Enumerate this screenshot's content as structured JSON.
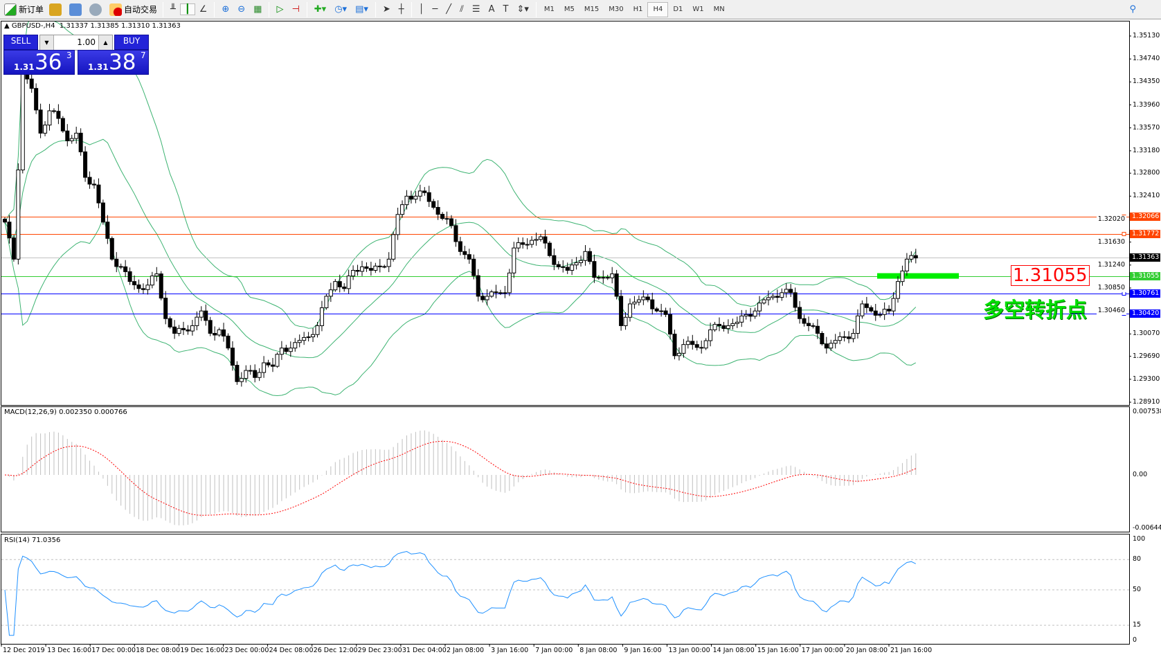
{
  "toolbar": {
    "new_order": "新订单",
    "auto_trading": "自动交易",
    "timeframes": [
      "M1",
      "M5",
      "M15",
      "M30",
      "H1",
      "H4",
      "D1",
      "W1",
      "MN"
    ],
    "active_timeframe": "H4",
    "tools": [
      "bar-chart-icon",
      "candlestick-icon",
      "line-chart-icon",
      "zoom-in-icon",
      "zoom-out-icon",
      "tile-windows-icon",
      "auto-scroll-icon",
      "chart-shift-icon",
      "indicators-icon",
      "periods-icon",
      "templates-icon",
      "cursor-icon",
      "crosshair-icon",
      "vertical-line-icon",
      "horizontal-line-icon",
      "trendline-icon",
      "equidistant-channel-icon",
      "fibonacci-icon",
      "text-icon",
      "text-label-icon",
      "arrows-icon",
      "search-icon"
    ]
  },
  "symbol": {
    "header": "GBPUSD-,H4",
    "ohlc": "1.31337 1.31385 1.31310 1.31363"
  },
  "trade_panel": {
    "sell": "SELL",
    "buy": "BUY",
    "lot": "1.00",
    "sell_prefix": "1.31",
    "sell_big": "36",
    "sell_sup": "3",
    "buy_prefix": "1.31",
    "buy_big": "38",
    "buy_sup": "7"
  },
  "price_axis": {
    "ticks": [
      "1.35130",
      "1.34740",
      "1.34350",
      "1.33960",
      "1.33570",
      "1.33180",
      "1.32800",
      "1.32410",
      "1.32020",
      "1.31630",
      "1.31240",
      "1.30850",
      "1.30460",
      "1.30070",
      "1.29690",
      "1.29300",
      "1.28910"
    ]
  },
  "levels": [
    {
      "price": "1.32066",
      "color": "#ff4500",
      "style": "orange-line"
    },
    {
      "price": "1.31772",
      "color": "#ff4500",
      "style": "orange-line"
    },
    {
      "price": "1.31363",
      "color": "#000000",
      "line": "#c0c0c0",
      "style": "bid-line"
    },
    {
      "price": "1.31055",
      "color": "#32cd32",
      "style": "green-line"
    },
    {
      "price": "1.30761",
      "color": "#0000ff",
      "style": "blue-line"
    },
    {
      "price": "1.30420",
      "color": "#0000ff",
      "style": "blue-line"
    }
  ],
  "annotation": {
    "price_label": "1.31055",
    "text": "多空转折点",
    "color": "#00e000",
    "box_color": "#ff0000"
  },
  "macd": {
    "title": "MACD(12,26,9) 0.002350 0.000766",
    "axis": [
      "0.007538",
      "0.00",
      "-0.006446"
    ]
  },
  "rsi": {
    "title": "RSI(14) 71.0356",
    "axis": [
      "100",
      "80",
      "50",
      "15",
      "0"
    ],
    "color": "#1e90ff"
  },
  "dates": [
    "12 Dec 2019",
    "13 Dec 16:00",
    "17 Dec 00:00",
    "18 Dec 08:00",
    "19 Dec 16:00",
    "23 Dec 00:00",
    "24 Dec 08:00",
    "26 Dec 12:00",
    "29 Dec 23:00",
    "31 Dec 04:00",
    "2 Jan 08:00",
    "3 Jan 16:00",
    "7 Jan 00:00",
    "8 Jan 08:00",
    "9 Jan 16:00",
    "13 Jan 00:00",
    "14 Jan 08:00",
    "15 Jan 16:00",
    "17 Jan 00:00",
    "20 Jan 08:00",
    "21 Jan 16:00"
  ],
  "closes": [
    1.3197,
    1.3134,
    1.3449,
    1.3424,
    1.3348,
    1.3386,
    1.3373,
    1.3335,
    1.3348,
    1.3273,
    1.326,
    1.3197,
    1.3134,
    1.3121,
    1.3096,
    1.3084,
    1.309,
    1.3109,
    1.3033,
    1.3008,
    1.3014,
    1.3021,
    1.3046,
    1.3008,
    1.3014,
    1.2983,
    1.2926,
    1.2945,
    1.2933,
    1.2958,
    1.2952,
    1.2983,
    1.2983,
    1.2996,
    1.3002,
    1.3021,
    1.3071,
    1.3096,
    1.3084,
    1.3115,
    1.3121,
    1.3115,
    1.3121,
    1.3134,
    1.321,
    1.3241,
    1.3241,
    1.3247,
    1.3222,
    1.3203,
    1.3191,
    1.3147,
    1.3134,
    1.3071,
    1.3071,
    1.3077,
    1.3077,
    1.3153,
    1.3159,
    1.3166,
    1.3172,
    1.314,
    1.3121,
    1.3115,
    1.3128,
    1.3147,
    1.3103,
    1.3103,
    1.3109,
    1.3021,
    1.3058,
    1.3065,
    1.3065,
    1.3046,
    1.304,
    1.297,
    1.2989,
    1.2989,
    1.2983,
    1.3014,
    1.3021,
    1.3021,
    1.3027,
    1.304,
    1.3046,
    1.3065,
    1.3071,
    1.3077,
    1.3077,
    1.3033,
    1.3021,
    1.3008,
    1.2983,
    1.2996,
    1.3002,
    1.3008,
    1.3058,
    1.3046,
    1.304,
    1.3046,
    1.3096,
    1.3134,
    1.3136
  ]
}
